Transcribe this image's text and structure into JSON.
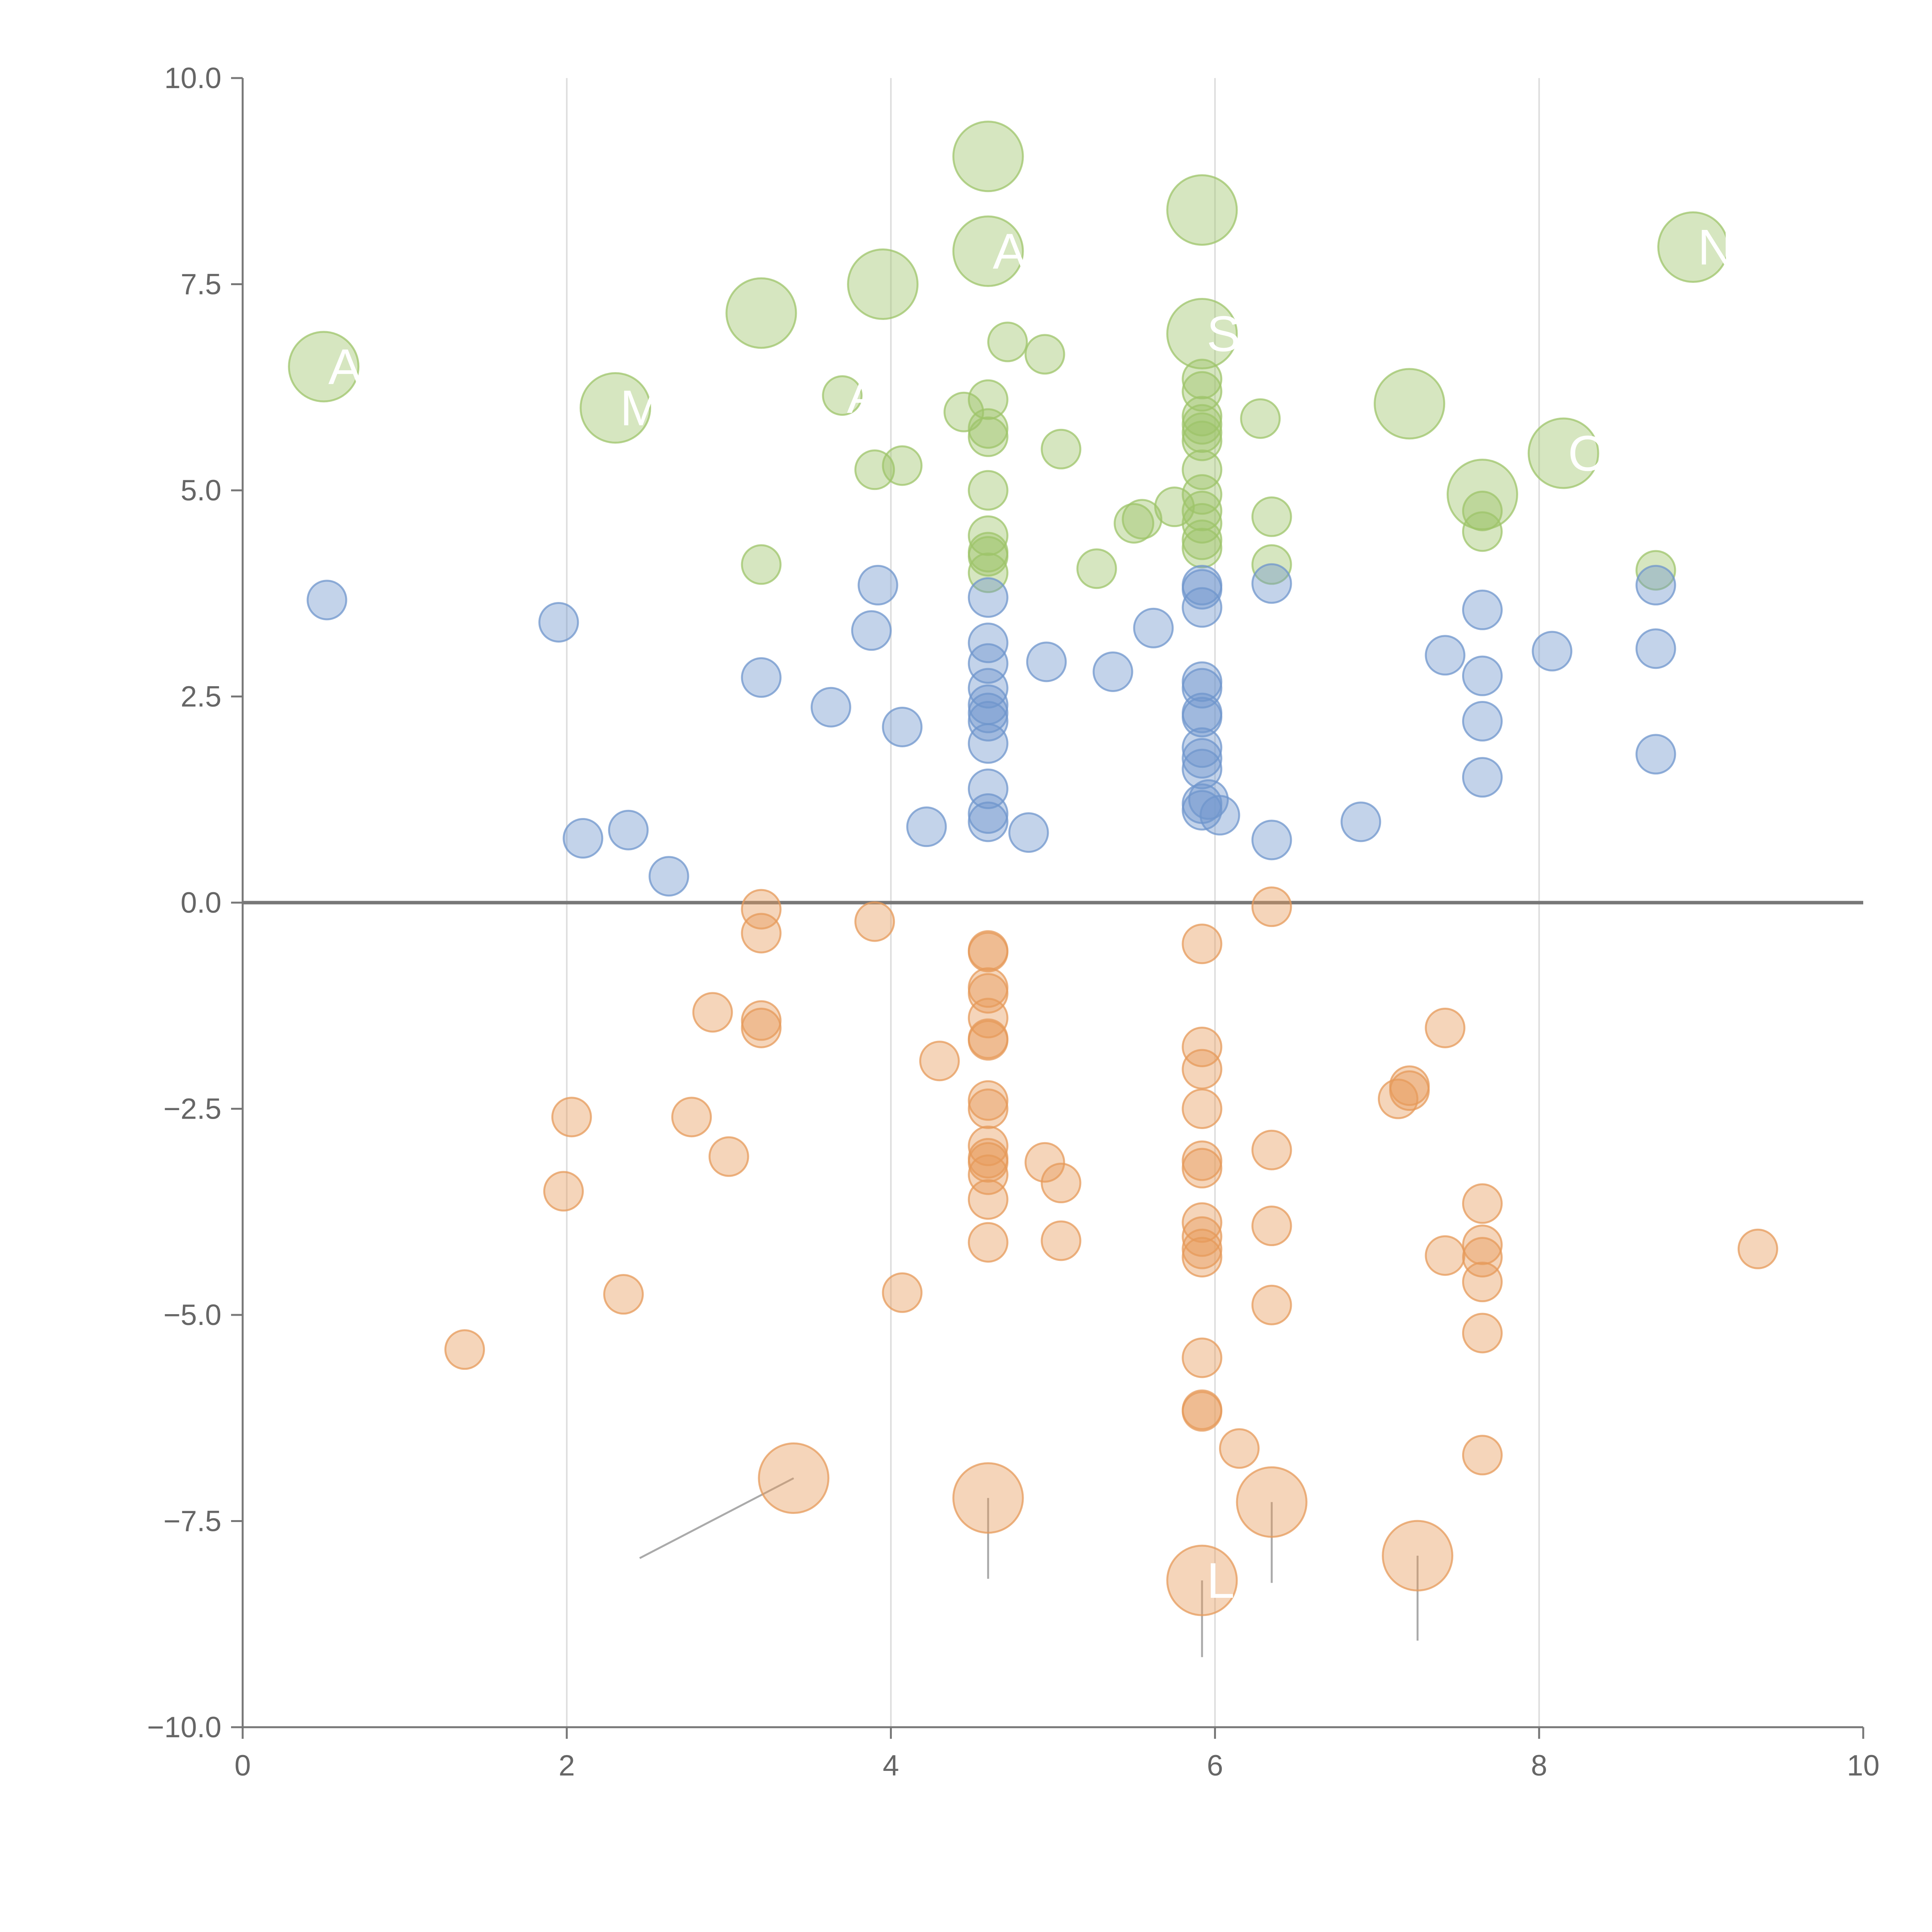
{
  "chart_data": {
    "type": "scatter",
    "title": "",
    "xlabel": "",
    "ylabel": "",
    "xlim": [
      0,
      10
    ],
    "ylim": [
      -10,
      10
    ],
    "x_ticks": [
      0,
      2,
      4,
      6,
      8,
      10
    ],
    "x_tick_labels": [
      "0",
      "2",
      "4",
      "6",
      "8",
      "10"
    ],
    "y_ticks": [
      10,
      7.5,
      5,
      2.5,
      0,
      -2.5,
      -5,
      -7.5,
      -10
    ],
    "y_tick_labels": [
      "10.0",
      "7.5",
      "5.0",
      "2.5",
      "0.0",
      "−2.5",
      "−5.0",
      "−7.5",
      "−10.0"
    ],
    "vertical_grid": true,
    "zero_line": true,
    "colors": {
      "green": "#9dc46a",
      "blue": "#6f95cc",
      "orange": "#e69a5a",
      "axis": "#777777",
      "grid": "#dddddd",
      "zero": "#777777",
      "leader": "#aaaaaa"
    },
    "series": [
      {
        "name": "green",
        "color_key": "green",
        "points": [
          {
            "x": 0.5,
            "y": 6.5,
            "r": 1.8,
            "label": "A"
          },
          {
            "x": 2.3,
            "y": 6.0,
            "r": 1.8,
            "label": "M"
          },
          {
            "x": 3.2,
            "y": 7.15,
            "r": 1.8
          },
          {
            "x": 3.95,
            "y": 7.5,
            "r": 1.8
          },
          {
            "x": 4.6,
            "y": 9.05,
            "r": 1.8
          },
          {
            "x": 4.6,
            "y": 7.9,
            "r": 1.8,
            "label": "A"
          },
          {
            "x": 5.92,
            "y": 8.4,
            "r": 1.8
          },
          {
            "x": 5.92,
            "y": 6.9,
            "r": 1.8,
            "label": "S"
          },
          {
            "x": 7.2,
            "y": 6.05,
            "r": 1.8
          },
          {
            "x": 7.65,
            "y": 4.95,
            "r": 1.8
          },
          {
            "x": 8.15,
            "y": 5.45,
            "r": 1.8,
            "label": "O"
          },
          {
            "x": 8.95,
            "y": 7.95,
            "r": 1.8,
            "label": "N"
          },
          {
            "x": 3.7,
            "y": 6.15,
            "r": 1,
            "label": "A"
          },
          {
            "x": 4.45,
            "y": 5.95,
            "r": 1
          },
          {
            "x": 4.6,
            "y": 6.1,
            "r": 1
          },
          {
            "x": 4.6,
            "y": 5.75,
            "r": 1
          },
          {
            "x": 4.6,
            "y": 5.65,
            "r": 1
          },
          {
            "x": 4.72,
            "y": 6.8,
            "r": 1
          },
          {
            "x": 4.95,
            "y": 6.65,
            "r": 1
          },
          {
            "x": 5.05,
            "y": 5.5,
            "r": 1
          },
          {
            "x": 3.9,
            "y": 5.25,
            "r": 1
          },
          {
            "x": 4.07,
            "y": 5.3,
            "r": 1
          },
          {
            "x": 4.6,
            "y": 5.0,
            "r": 1
          },
          {
            "x": 4.6,
            "y": 4.45,
            "r": 1
          },
          {
            "x": 4.6,
            "y": 4.25,
            "r": 1
          },
          {
            "x": 4.6,
            "y": 4.2,
            "r": 1
          },
          {
            "x": 4.6,
            "y": 4.0,
            "r": 1
          },
          {
            "x": 3.2,
            "y": 4.1,
            "r": 1
          },
          {
            "x": 5.27,
            "y": 4.05,
            "r": 1
          },
          {
            "x": 5.5,
            "y": 4.6,
            "r": 1
          },
          {
            "x": 5.55,
            "y": 4.65,
            "r": 1
          },
          {
            "x": 5.75,
            "y": 4.8,
            "r": 1
          },
          {
            "x": 5.92,
            "y": 6.35,
            "r": 1
          },
          {
            "x": 5.92,
            "y": 6.2,
            "r": 1
          },
          {
            "x": 5.92,
            "y": 5.9,
            "r": 1
          },
          {
            "x": 5.92,
            "y": 5.8,
            "r": 1
          },
          {
            "x": 5.92,
            "y": 5.7,
            "r": 1
          },
          {
            "x": 5.92,
            "y": 5.6,
            "r": 1
          },
          {
            "x": 5.92,
            "y": 5.25,
            "r": 1
          },
          {
            "x": 5.92,
            "y": 4.95,
            "r": 1
          },
          {
            "x": 5.92,
            "y": 4.75,
            "r": 1
          },
          {
            "x": 5.92,
            "y": 4.6,
            "r": 1
          },
          {
            "x": 5.92,
            "y": 4.4,
            "r": 1
          },
          {
            "x": 5.92,
            "y": 4.3,
            "r": 1
          },
          {
            "x": 6.28,
            "y": 5.87,
            "r": 1
          },
          {
            "x": 6.35,
            "y": 4.68,
            "r": 1
          },
          {
            "x": 6.35,
            "y": 4.1,
            "r": 1
          },
          {
            "x": 7.65,
            "y": 4.75,
            "r": 1
          },
          {
            "x": 7.65,
            "y": 4.5,
            "r": 1
          },
          {
            "x": 8.72,
            "y": 4.03,
            "r": 1
          }
        ]
      },
      {
        "name": "blue",
        "color_key": "blue",
        "points": [
          {
            "x": 0.52,
            "y": 3.67,
            "r": 1
          },
          {
            "x": 1.95,
            "y": 3.4,
            "r": 1
          },
          {
            "x": 2.1,
            "y": 0.78,
            "r": 1
          },
          {
            "x": 2.38,
            "y": 0.88,
            "r": 1
          },
          {
            "x": 2.63,
            "y": 0.32,
            "r": 1
          },
          {
            "x": 3.2,
            "y": 2.73,
            "r": 1
          },
          {
            "x": 3.63,
            "y": 2.37,
            "r": 1
          },
          {
            "x": 3.88,
            "y": 3.3,
            "r": 1
          },
          {
            "x": 3.92,
            "y": 3.85,
            "r": 1
          },
          {
            "x": 4.07,
            "y": 2.13,
            "r": 1
          },
          {
            "x": 4.22,
            "y": 0.92,
            "r": 1
          },
          {
            "x": 4.6,
            "y": 3.7,
            "r": 1
          },
          {
            "x": 4.6,
            "y": 3.15,
            "r": 1
          },
          {
            "x": 4.6,
            "y": 2.9,
            "r": 1
          },
          {
            "x": 4.6,
            "y": 2.6,
            "r": 1
          },
          {
            "x": 4.6,
            "y": 2.4,
            "r": 1
          },
          {
            "x": 4.6,
            "y": 2.3,
            "r": 1
          },
          {
            "x": 4.6,
            "y": 2.2,
            "r": 1
          },
          {
            "x": 4.6,
            "y": 1.93,
            "r": 1
          },
          {
            "x": 4.6,
            "y": 1.38,
            "r": 1
          },
          {
            "x": 4.6,
            "y": 1.08,
            "r": 1
          },
          {
            "x": 4.6,
            "y": 0.98,
            "r": 1
          },
          {
            "x": 4.85,
            "y": 0.85,
            "r": 1
          },
          {
            "x": 4.96,
            "y": 2.92,
            "r": 1
          },
          {
            "x": 5.37,
            "y": 2.8,
            "r": 1
          },
          {
            "x": 5.62,
            "y": 3.33,
            "r": 1
          },
          {
            "x": 5.92,
            "y": 3.85,
            "r": 1
          },
          {
            "x": 5.92,
            "y": 3.8,
            "r": 1
          },
          {
            "x": 5.92,
            "y": 3.58,
            "r": 1
          },
          {
            "x": 5.92,
            "y": 2.68,
            "r": 1
          },
          {
            "x": 5.92,
            "y": 2.6,
            "r": 1
          },
          {
            "x": 5.92,
            "y": 2.3,
            "r": 1
          },
          {
            "x": 5.92,
            "y": 2.25,
            "r": 1
          },
          {
            "x": 5.92,
            "y": 1.88,
            "r": 1
          },
          {
            "x": 5.92,
            "y": 1.75,
            "r": 1
          },
          {
            "x": 5.92,
            "y": 1.62,
            "r": 1
          },
          {
            "x": 5.92,
            "y": 1.2,
            "r": 1
          },
          {
            "x": 5.92,
            "y": 1.12,
            "r": 1
          },
          {
            "x": 5.96,
            "y": 1.25,
            "r": 1
          },
          {
            "x": 6.03,
            "y": 1.06,
            "r": 1
          },
          {
            "x": 6.35,
            "y": 3.87,
            "r": 1
          },
          {
            "x": 6.35,
            "y": 0.76,
            "r": 1
          },
          {
            "x": 6.9,
            "y": 0.98,
            "r": 1
          },
          {
            "x": 7.42,
            "y": 3.0,
            "r": 1
          },
          {
            "x": 7.65,
            "y": 3.55,
            "r": 1
          },
          {
            "x": 7.65,
            "y": 2.75,
            "r": 1
          },
          {
            "x": 7.65,
            "y": 2.2,
            "r": 1
          },
          {
            "x": 7.65,
            "y": 1.52,
            "r": 1
          },
          {
            "x": 8.08,
            "y": 3.05,
            "r": 1
          },
          {
            "x": 8.72,
            "y": 3.85,
            "r": 1
          },
          {
            "x": 8.72,
            "y": 3.08,
            "r": 1
          },
          {
            "x": 8.72,
            "y": 1.8,
            "r": 1
          }
        ]
      },
      {
        "name": "orange",
        "color_key": "orange",
        "points": [
          {
            "x": 3.2,
            "y": -0.08,
            "r": 1
          },
          {
            "x": 3.2,
            "y": -0.37,
            "r": 1
          },
          {
            "x": 3.2,
            "y": -1.43,
            "r": 1
          },
          {
            "x": 3.2,
            "y": -1.52,
            "r": 1
          },
          {
            "x": 2.9,
            "y": -1.33,
            "r": 1
          },
          {
            "x": 2.03,
            "y": -2.6,
            "r": 1
          },
          {
            "x": 1.98,
            "y": -3.5,
            "r": 1
          },
          {
            "x": 2.77,
            "y": -2.6,
            "r": 1
          },
          {
            "x": 3.0,
            "y": -3.08,
            "r": 1
          },
          {
            "x": 2.35,
            "y": -4.75,
            "r": 1
          },
          {
            "x": 1.37,
            "y": -5.42,
            "r": 1
          },
          {
            "x": 3.9,
            "y": -0.23,
            "r": 1
          },
          {
            "x": 4.07,
            "y": -4.73,
            "r": 1
          },
          {
            "x": 4.3,
            "y": -1.92,
            "r": 1
          },
          {
            "x": 4.6,
            "y": -0.58,
            "r": 1
          },
          {
            "x": 4.6,
            "y": -0.6,
            "r": 1
          },
          {
            "x": 4.6,
            "y": -1.03,
            "r": 1
          },
          {
            "x": 4.6,
            "y": -1.1,
            "r": 1
          },
          {
            "x": 4.6,
            "y": -1.4,
            "r": 1
          },
          {
            "x": 4.6,
            "y": -1.65,
            "r": 1
          },
          {
            "x": 4.6,
            "y": -1.67,
            "r": 1
          },
          {
            "x": 4.6,
            "y": -2.4,
            "r": 1
          },
          {
            "x": 4.6,
            "y": -2.5,
            "r": 1
          },
          {
            "x": 4.6,
            "y": -2.95,
            "r": 1
          },
          {
            "x": 4.6,
            "y": -3.1,
            "r": 1
          },
          {
            "x": 4.6,
            "y": -3.15,
            "r": 1
          },
          {
            "x": 4.6,
            "y": -3.3,
            "r": 1
          },
          {
            "x": 4.6,
            "y": -3.6,
            "r": 1
          },
          {
            "x": 4.6,
            "y": -4.12,
            "r": 1
          },
          {
            "x": 4.95,
            "y": -3.15,
            "r": 1
          },
          {
            "x": 5.05,
            "y": -3.4,
            "r": 1
          },
          {
            "x": 5.05,
            "y": -4.1,
            "r": 1
          },
          {
            "x": 5.92,
            "y": -0.5,
            "r": 1
          },
          {
            "x": 5.92,
            "y": -1.75,
            "r": 1
          },
          {
            "x": 5.92,
            "y": -2.02,
            "r": 1
          },
          {
            "x": 5.92,
            "y": -2.5,
            "r": 1
          },
          {
            "x": 5.92,
            "y": -3.13,
            "r": 1
          },
          {
            "x": 5.92,
            "y": -3.22,
            "r": 1
          },
          {
            "x": 5.92,
            "y": -3.88,
            "r": 1
          },
          {
            "x": 5.92,
            "y": -4.05,
            "r": 1
          },
          {
            "x": 5.92,
            "y": -4.2,
            "r": 1
          },
          {
            "x": 5.92,
            "y": -4.3,
            "r": 1
          },
          {
            "x": 5.92,
            "y": -5.52,
            "r": 1
          },
          {
            "x": 5.92,
            "y": -6.15,
            "r": 1
          },
          {
            "x": 5.92,
            "y": -6.17,
            "r": 1
          },
          {
            "x": 6.15,
            "y": -6.62,
            "r": 1
          },
          {
            "x": 6.35,
            "y": -0.05,
            "r": 1
          },
          {
            "x": 6.35,
            "y": -3.0,
            "r": 1
          },
          {
            "x": 6.35,
            "y": -3.92,
            "r": 1
          },
          {
            "x": 6.35,
            "y": -4.88,
            "r": 1
          },
          {
            "x": 7.13,
            "y": -2.38,
            "r": 1
          },
          {
            "x": 7.2,
            "y": -2.22,
            "r": 1
          },
          {
            "x": 7.2,
            "y": -2.28,
            "r": 1
          },
          {
            "x": 7.42,
            "y": -1.52,
            "r": 1
          },
          {
            "x": 7.42,
            "y": -4.28,
            "r": 1
          },
          {
            "x": 7.65,
            "y": -3.65,
            "r": 1
          },
          {
            "x": 7.65,
            "y": -4.15,
            "r": 1
          },
          {
            "x": 7.65,
            "y": -4.3,
            "r": 1
          },
          {
            "x": 7.65,
            "y": -4.6,
            "r": 1
          },
          {
            "x": 7.65,
            "y": -5.22,
            "r": 1
          },
          {
            "x": 7.65,
            "y": -6.7,
            "r": 1
          },
          {
            "x": 9.35,
            "y": -4.2,
            "r": 1
          },
          {
            "x": 3.4,
            "y": -6.98,
            "r": 1.8,
            "leader": [
              2.45,
              -7.95
            ]
          },
          {
            "x": 4.6,
            "y": -7.22,
            "r": 1.8,
            "leader": [
              4.6,
              -8.2
            ]
          },
          {
            "x": 5.92,
            "y": -8.22,
            "r": 1.8,
            "leader": [
              5.92,
              -9.15
            ],
            "label": "L"
          },
          {
            "x": 6.35,
            "y": -7.27,
            "r": 1.8,
            "leader": [
              6.35,
              -8.25
            ]
          },
          {
            "x": 7.25,
            "y": -7.92,
            "r": 1.8,
            "leader": [
              7.25,
              -8.95
            ]
          }
        ]
      }
    ]
  }
}
